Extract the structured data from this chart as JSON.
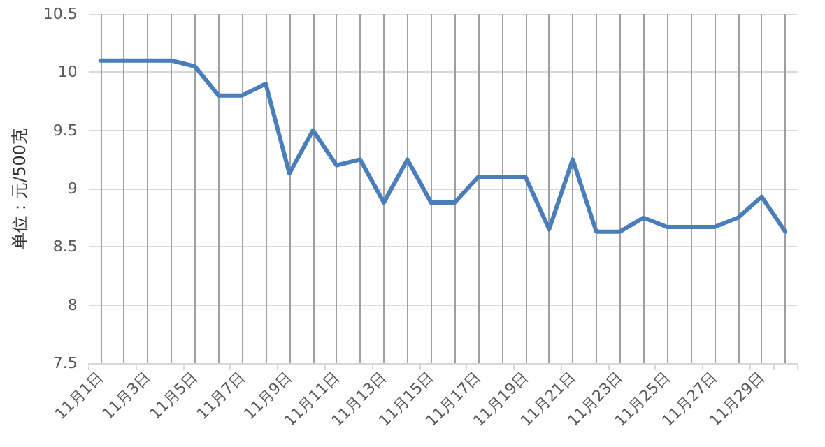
{
  "chart_data": {
    "type": "line",
    "ylabel": "单位：元/500克",
    "categories": [
      "11月1日",
      null,
      "11月3日",
      null,
      "11月5日",
      null,
      "11月7日",
      null,
      "11月9日",
      null,
      "11月11日",
      null,
      "11月13日",
      null,
      "11月15日",
      null,
      "11月17日",
      null,
      "11月19日",
      null,
      "11月21日",
      null,
      "11月23日",
      null,
      "11月25日",
      null,
      "11月27日",
      null,
      "11月29日",
      null
    ],
    "series": [
      {
        "color": "#4a7ebb",
        "values": [
          10.1,
          10.1,
          10.1,
          10.1,
          10.05,
          9.8,
          9.8,
          9.9,
          9.13,
          9.5,
          9.2,
          9.25,
          8.88,
          9.25,
          8.88,
          8.88,
          9.1,
          9.1,
          9.1,
          8.65,
          9.25,
          8.63,
          8.63,
          8.75,
          8.67,
          8.67,
          8.67,
          8.75,
          8.93,
          8.63
        ]
      }
    ],
    "ylim": [
      7.5,
      10.5
    ],
    "yticks": [
      7.5,
      8,
      8.5,
      9,
      9.5,
      10,
      10.5
    ],
    "grid": true,
    "marker": "none",
    "line_style": "solid"
  }
}
